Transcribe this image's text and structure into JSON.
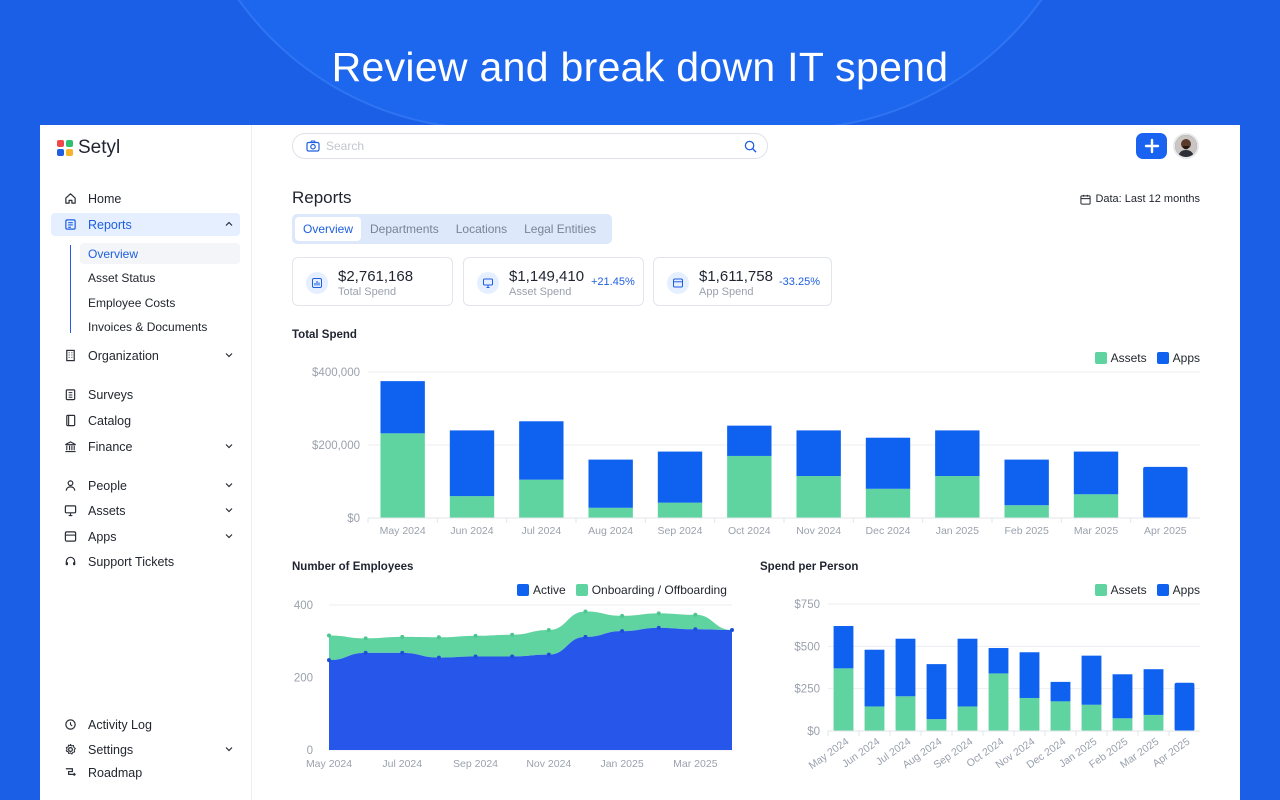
{
  "headline": "Review and break down IT spend",
  "brand": {
    "name": "Setyl",
    "logo_colors": [
      "#f0484a",
      "#2fbf71",
      "#1d5fe0",
      "#f7b32b"
    ]
  },
  "sidebar": {
    "items": [
      {
        "label": "Home",
        "icon": "home-icon"
      },
      {
        "label": "Reports",
        "icon": "reports-icon",
        "active": true,
        "expanded": true
      },
      {
        "label": "Organization",
        "icon": "building-icon",
        "chevron": true
      },
      {
        "label": "Surveys",
        "icon": "clipboard-icon"
      },
      {
        "label": "Catalog",
        "icon": "book-icon"
      },
      {
        "label": "Finance",
        "icon": "finance-icon",
        "chevron": true
      },
      {
        "label": "People",
        "icon": "person-icon",
        "chevron": true
      },
      {
        "label": "Assets",
        "icon": "monitor-icon",
        "chevron": true
      },
      {
        "label": "Apps",
        "icon": "app-window-icon",
        "chevron": true
      },
      {
        "label": "Support Tickets",
        "icon": "headset-icon"
      },
      {
        "label": "Activity Log",
        "icon": "history-icon"
      },
      {
        "label": "Settings",
        "icon": "gear-icon",
        "chevron": true
      },
      {
        "label": "Roadmap",
        "icon": "roadmap-icon"
      }
    ],
    "sub_items": [
      "Overview",
      "Asset Status",
      "Employee Costs",
      "Invoices & Documents"
    ]
  },
  "search": {
    "placeholder": "Search"
  },
  "page": {
    "title": "Reports",
    "data_range": "Data: Last 12 months",
    "tabs": [
      "Overview",
      "Departments",
      "Locations",
      "Legal Entities"
    ]
  },
  "stats": [
    {
      "value": "$2,761,168",
      "label": "Total Spend",
      "change": ""
    },
    {
      "value": "$1,149,410",
      "label": "Asset Spend",
      "change": "+21.45%"
    },
    {
      "value": "$1,611,758",
      "label": "App Spend",
      "change": "-33.25%"
    }
  ],
  "colors": {
    "assets": "#5fd3a0",
    "apps": "#0f62f0",
    "active": "#2756ea",
    "onboarding": "#5fd3a0",
    "accent": "#1d5fe0"
  },
  "chart_data": [
    {
      "type": "bar",
      "stacked": true,
      "title": "Total Spend",
      "categories": [
        "May 2024",
        "Jun 2024",
        "Jul 2024",
        "Aug 2024",
        "Sep 2024",
        "Oct 2024",
        "Nov 2024",
        "Dec 2024",
        "Jan 2025",
        "Feb 2025",
        "Mar 2025",
        "Apr 2025"
      ],
      "series": [
        {
          "name": "Assets",
          "values": [
            232000,
            60000,
            105000,
            28000,
            42000,
            170000,
            115000,
            80000,
            115000,
            35000,
            65000,
            0
          ]
        },
        {
          "name": "Apps",
          "values": [
            143000,
            180000,
            160000,
            132000,
            140000,
            83000,
            125000,
            140000,
            125000,
            125000,
            117000,
            140000
          ]
        }
      ],
      "yticks": [
        "$0",
        "$200,000",
        "$400,000"
      ],
      "ylim": [
        0,
        400000
      ],
      "legend": "top-right",
      "grid": true
    },
    {
      "type": "area",
      "stacked": true,
      "title": "Number of Employees",
      "x": [
        "May 2024",
        "Jun 2024",
        "Jul 2024",
        "Aug 2024",
        "Sep 2024",
        "Oct 2024",
        "Nov 2024",
        "Dec 2024",
        "Jan 2025",
        "Feb 2025",
        "Mar 2025",
        "Apr 2025"
      ],
      "xticks": [
        "May 2024",
        "Jul 2024",
        "Sep 2024",
        "Nov 2024",
        "Jan 2025",
        "Mar 2025"
      ],
      "series": [
        {
          "name": "Active",
          "values": [
            248,
            268,
            268,
            255,
            258,
            258,
            263,
            312,
            328,
            337,
            333,
            331
          ]
        },
        {
          "name": "Onboarding / Offboarding",
          "values": [
            68,
            40,
            44,
            56,
            57,
            60,
            68,
            70,
            42,
            40,
            40,
            0
          ]
        }
      ],
      "yticks": [
        "0",
        "200",
        "400"
      ],
      "ylim": [
        0,
        400
      ],
      "legend": "top-right",
      "grid": true
    },
    {
      "type": "bar",
      "stacked": true,
      "title": "Spend per Person",
      "categories": [
        "May 2024",
        "Jun 2024",
        "Jul 2024",
        "Aug 2024",
        "Sep 2024",
        "Oct 2024",
        "Nov 2024",
        "Dec 2024",
        "Jan 2025",
        "Feb 2025",
        "Mar 2025",
        "Apr 2025"
      ],
      "series": [
        {
          "name": "Assets",
          "values": [
            370,
            145,
            205,
            70,
            145,
            340,
            195,
            175,
            155,
            75,
            95,
            0
          ]
        },
        {
          "name": "Apps",
          "values": [
            250,
            335,
            340,
            325,
            400,
            150,
            270,
            115,
            290,
            260,
            270,
            285
          ]
        }
      ],
      "yticks": [
        "$0",
        "$250",
        "$500",
        "$750"
      ],
      "ylim": [
        0,
        750
      ],
      "legend": "top-right",
      "grid": true
    }
  ]
}
